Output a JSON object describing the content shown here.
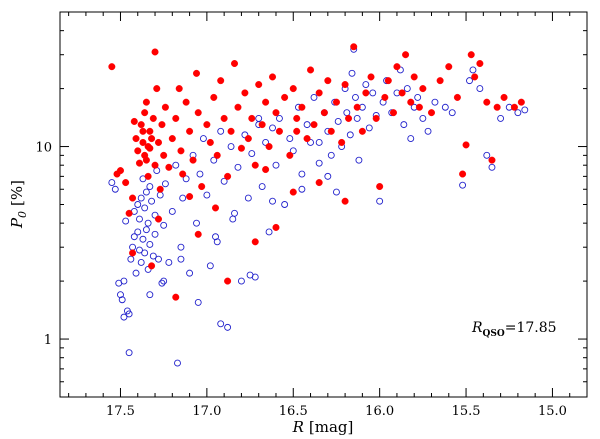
{
  "chart_data": {
    "type": "scatter",
    "xlabel": {
      "symbol": "R",
      "unit": "[mag]"
    },
    "ylabel": {
      "symbol": "P",
      "subscript": "0",
      "unit": "[%]"
    },
    "xlim": [
      17.85,
      14.8
    ],
    "ylim": [
      0.5,
      50
    ],
    "yscale": "log",
    "x_ticks": [
      17.5,
      17.0,
      16.5,
      16.0,
      15.5,
      15.0
    ],
    "x_tick_labels": [
      "17.5",
      "17.0",
      "16.5",
      "16.0",
      "15.5",
      "15.0"
    ],
    "y_ticks": [
      1,
      10
    ],
    "y_tick_labels": [
      "1",
      "10"
    ],
    "annotation": {
      "symbol": "R",
      "subscript": "QSO",
      "text": "=17.85"
    },
    "series": [
      {
        "name": "filled",
        "marker": "filled-circle",
        "color": "#ff0000",
        "points": [
          [
            17.55,
            26
          ],
          [
            17.52,
            7.2
          ],
          [
            17.5,
            7.5
          ],
          [
            17.47,
            6.5
          ],
          [
            17.45,
            4.5
          ],
          [
            17.43,
            5.4
          ],
          [
            17.42,
            13.5
          ],
          [
            17.41,
            11
          ],
          [
            17.4,
            9.5
          ],
          [
            17.39,
            8.2
          ],
          [
            17.38,
            13
          ],
          [
            17.37,
            10.5
          ],
          [
            17.37,
            12
          ],
          [
            17.36,
            9
          ],
          [
            17.36,
            15
          ],
          [
            17.35,
            8.5
          ],
          [
            17.35,
            17
          ],
          [
            17.34,
            10
          ],
          [
            17.34,
            7
          ],
          [
            17.33,
            12
          ],
          [
            17.33,
            9.8
          ],
          [
            17.32,
            11
          ],
          [
            17.31,
            14
          ],
          [
            17.3,
            8
          ],
          [
            17.3,
            31
          ],
          [
            17.29,
            20
          ],
          [
            17.28,
            10.5
          ],
          [
            17.27,
            6
          ],
          [
            17.26,
            13
          ],
          [
            17.25,
            9
          ],
          [
            17.24,
            16
          ],
          [
            17.22,
            7.8
          ],
          [
            17.2,
            11
          ],
          [
            17.18,
            14
          ],
          [
            17.16,
            20
          ],
          [
            17.15,
            9.5
          ],
          [
            17.14,
            7.2
          ],
          [
            17.12,
            17
          ],
          [
            17.1,
            12
          ],
          [
            17.08,
            8.5
          ],
          [
            17.06,
            24
          ],
          [
            17.05,
            15
          ],
          [
            17.03,
            6.2
          ],
          [
            17.0,
            13
          ],
          [
            16.98,
            10.5
          ],
          [
            16.96,
            18
          ],
          [
            16.94,
            9
          ],
          [
            16.92,
            22
          ],
          [
            16.9,
            14
          ],
          [
            16.88,
            7
          ],
          [
            16.86,
            12
          ],
          [
            16.84,
            27
          ],
          [
            16.82,
            16
          ],
          [
            16.8,
            9.8
          ],
          [
            16.78,
            19
          ],
          [
            16.76,
            11
          ],
          [
            16.74,
            14
          ],
          [
            16.72,
            8
          ],
          [
            16.7,
            21
          ],
          [
            16.68,
            13
          ],
          [
            16.66,
            17
          ],
          [
            16.64,
            10
          ],
          [
            16.62,
            23
          ],
          [
            16.6,
            15
          ],
          [
            16.58,
            12
          ],
          [
            16.55,
            18
          ],
          [
            16.52,
            9
          ],
          [
            16.5,
            20
          ],
          [
            16.48,
            14
          ],
          [
            16.45,
            16
          ],
          [
            16.42,
            11
          ],
          [
            16.4,
            25
          ],
          [
            16.38,
            13
          ],
          [
            16.35,
            19
          ],
          [
            16.32,
            15
          ],
          [
            16.3,
            22
          ],
          [
            16.28,
            12
          ],
          [
            16.25,
            17
          ],
          [
            16.22,
            10.5
          ],
          [
            16.2,
            21
          ],
          [
            16.18,
            14
          ],
          [
            16.15,
            33
          ],
          [
            16.13,
            16
          ],
          [
            16.1,
            12
          ],
          [
            16.08,
            19
          ],
          [
            16.05,
            23
          ],
          [
            16.02,
            14
          ],
          [
            16.0,
            6.2
          ],
          [
            15.97,
            18
          ],
          [
            15.95,
            22
          ],
          [
            15.92,
            15
          ],
          [
            15.9,
            26
          ],
          [
            15.87,
            19
          ],
          [
            15.85,
            30
          ],
          [
            15.82,
            17
          ],
          [
            15.8,
            23
          ],
          [
            15.77,
            16
          ],
          [
            15.75,
            20
          ],
          [
            15.7,
            15
          ],
          [
            15.65,
            22
          ],
          [
            15.6,
            26
          ],
          [
            15.55,
            18
          ],
          [
            15.5,
            10.2
          ],
          [
            15.47,
            30
          ],
          [
            15.45,
            23
          ],
          [
            15.42,
            27
          ],
          [
            15.38,
            17
          ],
          [
            15.35,
            8.5
          ],
          [
            15.32,
            16
          ],
          [
            15.28,
            18
          ],
          [
            15.22,
            16
          ],
          [
            15.18,
            17
          ],
          [
            17.43,
            2.8
          ],
          [
            17.32,
            2.4
          ],
          [
            17.18,
            1.65
          ],
          [
            17.05,
            3.5
          ],
          [
            16.88,
            2.0
          ],
          [
            16.72,
            3.2
          ],
          [
            16.95,
            4.8
          ],
          [
            16.6,
            3.8
          ],
          [
            17.28,
            4.2
          ],
          [
            17.1,
            5.5
          ],
          [
            16.5,
            5.8
          ],
          [
            16.35,
            6.5
          ],
          [
            16.2,
            5.2
          ],
          [
            15.52,
            7.2
          ],
          [
            16.48,
            12
          ],
          [
            16.66,
            7.6
          ]
        ]
      },
      {
        "name": "open",
        "marker": "open-circle",
        "color": "#2222cc",
        "points": [
          [
            17.55,
            6.5
          ],
          [
            17.53,
            6.0
          ],
          [
            17.51,
            1.95
          ],
          [
            17.5,
            1.7
          ],
          [
            17.49,
            1.6
          ],
          [
            17.48,
            2.0
          ],
          [
            17.47,
            4.1
          ],
          [
            17.46,
            1.4
          ],
          [
            17.45,
            1.35
          ],
          [
            17.44,
            2.6
          ],
          [
            17.43,
            3.0
          ],
          [
            17.42,
            3.4
          ],
          [
            17.42,
            4.6
          ],
          [
            17.41,
            2.2
          ],
          [
            17.4,
            5.0
          ],
          [
            17.4,
            3.6
          ],
          [
            17.39,
            2.9
          ],
          [
            17.39,
            4.2
          ],
          [
            17.38,
            5.4
          ],
          [
            17.38,
            2.5
          ],
          [
            17.37,
            3.3
          ],
          [
            17.37,
            6.8
          ],
          [
            17.36,
            4.8
          ],
          [
            17.36,
            2.8
          ],
          [
            17.35,
            3.7
          ],
          [
            17.35,
            5.8
          ],
          [
            17.34,
            2.3
          ],
          [
            17.34,
            4.0
          ],
          [
            17.33,
            3.1
          ],
          [
            17.33,
            6.2
          ],
          [
            17.32,
            5.2
          ],
          [
            17.31,
            2.7
          ],
          [
            17.3,
            4.4
          ],
          [
            17.3,
            3.5
          ],
          [
            17.29,
            7.5
          ],
          [
            17.28,
            2.6
          ],
          [
            17.27,
            5.6
          ],
          [
            17.26,
            1.95
          ],
          [
            17.25,
            3.9
          ],
          [
            17.24,
            6.4
          ],
          [
            17.22,
            2.5
          ],
          [
            17.2,
            4.6
          ],
          [
            17.18,
            8.0
          ],
          [
            17.17,
            0.75
          ],
          [
            17.15,
            3.0
          ],
          [
            17.14,
            5.4
          ],
          [
            17.12,
            6.8
          ],
          [
            17.1,
            2.2
          ],
          [
            17.08,
            9.0
          ],
          [
            17.06,
            4.0
          ],
          [
            17.04,
            7.2
          ],
          [
            17.02,
            11
          ],
          [
            17.0,
            5.6
          ],
          [
            16.98,
            2.4
          ],
          [
            16.96,
            8.5
          ],
          [
            16.94,
            3.2
          ],
          [
            16.92,
            12
          ],
          [
            16.9,
            6.6
          ],
          [
            16.88,
            1.15
          ],
          [
            16.86,
            10
          ],
          [
            16.84,
            4.5
          ],
          [
            16.82,
            7.8
          ],
          [
            16.8,
            2.0
          ],
          [
            16.78,
            11.5
          ],
          [
            16.76,
            5.4
          ],
          [
            16.74,
            9.2
          ],
          [
            16.72,
            2.1
          ],
          [
            16.7,
            13
          ],
          [
            16.68,
            6.2
          ],
          [
            16.66,
            10.5
          ],
          [
            16.64,
            3.6
          ],
          [
            16.62,
            12.5
          ],
          [
            16.6,
            8.0
          ],
          [
            16.58,
            14
          ],
          [
            16.55,
            5.0
          ],
          [
            16.52,
            11
          ],
          [
            16.5,
            9.5
          ],
          [
            16.47,
            16
          ],
          [
            16.45,
            7.2
          ],
          [
            16.42,
            13
          ],
          [
            16.4,
            10.5
          ],
          [
            16.38,
            18
          ],
          [
            16.35,
            8.2
          ],
          [
            16.32,
            15
          ],
          [
            16.3,
            12
          ],
          [
            16.28,
            9.0
          ],
          [
            16.26,
            17
          ],
          [
            16.24,
            13.5
          ],
          [
            16.22,
            10
          ],
          [
            16.2,
            20
          ],
          [
            16.19,
            15
          ],
          [
            16.17,
            11.5
          ],
          [
            16.16,
            24
          ],
          [
            16.15,
            32
          ],
          [
            16.14,
            18
          ],
          [
            16.13,
            14
          ],
          [
            16.12,
            8.5
          ],
          [
            16.1,
            16
          ],
          [
            16.08,
            21
          ],
          [
            16.06,
            12.5
          ],
          [
            16.04,
            19
          ],
          [
            16.02,
            14.5
          ],
          [
            16.0,
            5.2
          ],
          [
            15.98,
            17
          ],
          [
            15.96,
            22
          ],
          [
            15.93,
            15
          ],
          [
            15.9,
            19
          ],
          [
            15.88,
            25
          ],
          [
            15.86,
            13
          ],
          [
            15.84,
            20
          ],
          [
            15.82,
            11
          ],
          [
            15.8,
            16
          ],
          [
            15.78,
            18
          ],
          [
            15.75,
            14
          ],
          [
            15.72,
            12
          ],
          [
            15.68,
            17
          ],
          [
            15.62,
            16
          ],
          [
            15.58,
            15
          ],
          [
            15.52,
            6.3
          ],
          [
            15.48,
            22
          ],
          [
            15.46,
            25
          ],
          [
            15.42,
            20
          ],
          [
            15.38,
            9.0
          ],
          [
            15.35,
            7.8
          ],
          [
            15.3,
            14
          ],
          [
            15.25,
            16
          ],
          [
            15.2,
            15
          ],
          [
            15.16,
            15.5
          ],
          [
            17.45,
            0.85
          ],
          [
            17.48,
            1.3
          ],
          [
            17.25,
            2.0
          ],
          [
            17.05,
            1.55
          ],
          [
            16.92,
            1.2
          ],
          [
            16.75,
            2.15
          ],
          [
            17.33,
            1.7
          ],
          [
            17.15,
            2.6
          ],
          [
            16.95,
            3.4
          ],
          [
            16.85,
            4.2
          ],
          [
            16.62,
            5.2
          ],
          [
            16.45,
            6.0
          ],
          [
            16.3,
            7.0
          ],
          [
            16.25,
            5.8
          ],
          [
            16.35,
            10.5
          ],
          [
            16.7,
            14
          ]
        ]
      }
    ]
  }
}
